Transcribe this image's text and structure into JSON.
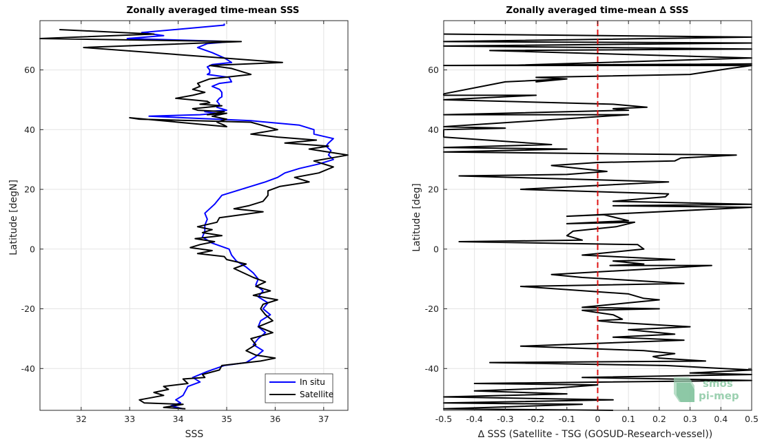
{
  "chart_data": [
    {
      "type": "line",
      "title": "Zonally averaged time-mean SSS",
      "xlabel": "SSS",
      "ylabel": "Latitude [degN]",
      "xlim": [
        31.15,
        37.5
      ],
      "ylim": [
        -54,
        76.5
      ],
      "xticks": [
        32,
        33,
        34,
        35,
        36,
        37
      ],
      "yticks": [
        -40,
        -20,
        0,
        20,
        40,
        60
      ],
      "grid": true,
      "legend": "bottom-right",
      "series": [
        {
          "name": "In situ",
          "color": "#0000ff",
          "x": [
            34.95,
            34.95,
            33.25,
            33.7,
            32.95,
            35.1,
            34.6,
            34.4,
            34.7,
            34.95,
            35.1,
            34.7,
            34.6,
            34.65,
            34.65,
            34.6,
            35.05,
            35.1,
            34.85,
            34.7,
            34.85,
            34.9,
            34.9,
            34.85,
            34.8,
            34.85,
            34.8,
            35.0,
            34.55,
            34.8,
            34.45,
            33.4,
            35.5,
            36.5,
            36.8,
            36.8,
            37.2,
            37.1,
            37.05,
            37.15,
            37.1,
            37.2,
            36.9,
            36.5,
            36.2,
            36.05,
            35.8,
            35.5,
            35.2,
            34.9,
            34.75,
            34.55,
            34.6,
            34.55,
            34.55,
            34.5,
            34.7,
            35.05,
            35.1,
            35.2,
            35.4,
            35.55,
            35.65,
            35.6,
            35.75,
            35.65,
            35.85,
            35.75,
            35.9,
            35.7,
            35.65,
            35.8,
            35.65,
            35.55,
            35.75,
            35.6,
            35.4,
            34.95,
            34.6,
            34.3,
            34.45,
            34.2,
            34.15,
            34.1,
            33.95,
            34.05,
            33.85,
            34.1
          ],
          "y": [
            75.5,
            75.0,
            72.5,
            71.5,
            70.5,
            69.5,
            68.8,
            67.5,
            65.8,
            64.0,
            62.5,
            61.8,
            61.0,
            60.0,
            59.0,
            58.5,
            57.5,
            56.0,
            55.5,
            54.5,
            53.5,
            52.5,
            51.0,
            50.5,
            49.5,
            48.5,
            47.5,
            46.5,
            46.0,
            45.5,
            45.0,
            44.5,
            43.0,
            41.5,
            40.0,
            38.5,
            37.0,
            35.5,
            34.5,
            33.0,
            31.5,
            30.0,
            28.5,
            27.0,
            25.5,
            24.0,
            22.5,
            21.0,
            19.5,
            18.0,
            15.0,
            12.0,
            10.0,
            8.0,
            6.0,
            4.0,
            2.0,
            0.0,
            -2.0,
            -4.0,
            -6.0,
            -8.0,
            -10.0,
            -12.0,
            -14.0,
            -16.0,
            -18.0,
            -20.0,
            -22.0,
            -24.0,
            -26.0,
            -28.0,
            -30.0,
            -32.0,
            -34.0,
            -36.0,
            -38.0,
            -39.0,
            -41.0,
            -43.0,
            -44.5,
            -46.0,
            -47.5,
            -49.0,
            -50.5,
            -51.5,
            -52.5,
            -53.5
          ]
        },
        {
          "name": "Satellite",
          "color": "#000000",
          "x": [
            31.55,
            33.5,
            31.15,
            35.3,
            32.05,
            36.15,
            34.65,
            35.1,
            35.5,
            34.95,
            34.65,
            34.4,
            34.45,
            34.3,
            34.55,
            34.3,
            33.95,
            34.6,
            34.65,
            34.45,
            34.9,
            34.3,
            34.4,
            34.95,
            34.6,
            35.0,
            34.7,
            35.0,
            34.8,
            34.95,
            35.0,
            33.0,
            33.2,
            35.5,
            36.05,
            35.5,
            36.05,
            36.85,
            36.2,
            37.1,
            36.7,
            37.5,
            36.8,
            37.2,
            36.9,
            36.4,
            36.7,
            36.1,
            35.85,
            35.85,
            35.75,
            35.45,
            35.15,
            35.75,
            34.85,
            34.8,
            34.4,
            34.7,
            34.5,
            34.9,
            34.35,
            34.75,
            34.45,
            34.25,
            34.7,
            34.4,
            34.95,
            35.0,
            35.4,
            35.15,
            35.35,
            35.55,
            35.8,
            35.6,
            35.9,
            35.55,
            36.05,
            35.75,
            35.7,
            35.8,
            35.95,
            35.65,
            35.95,
            35.5,
            35.6,
            35.4,
            35.6,
            36.0,
            35.7,
            34.9,
            34.85,
            34.5,
            34.55,
            34.1,
            34.2,
            33.7,
            33.8,
            33.5,
            33.7,
            33.2,
            33.3,
            34.1,
            33.7,
            34.15
          ],
          "y": [
            73.5,
            72.0,
            70.5,
            69.5,
            67.5,
            62.5,
            61.5,
            60.5,
            58.5,
            57.5,
            57.0,
            55.5,
            54.5,
            53.5,
            52.5,
            51.5,
            50.5,
            49.5,
            49.0,
            48.5,
            48.0,
            47.0,
            46.5,
            46.0,
            45.0,
            45.5,
            44.5,
            43.5,
            42.5,
            41.5,
            41.0,
            44.0,
            43.5,
            42.5,
            40.0,
            38.5,
            37.5,
            36.5,
            35.5,
            34.5,
            33.5,
            31.5,
            29.5,
            27.5,
            25.5,
            24.0,
            22.5,
            21.0,
            19.5,
            18.0,
            16.0,
            14.5,
            13.5,
            12.5,
            10.5,
            9.0,
            7.5,
            6.5,
            5.5,
            4.5,
            3.5,
            2.5,
            1.5,
            0.5,
            -0.5,
            -1.5,
            -2.5,
            -3.5,
            -5.0,
            -6.5,
            -8.0,
            -9.5,
            -11.0,
            -12.5,
            -14.0,
            -15.5,
            -17.0,
            -18.5,
            -20.0,
            -22.0,
            -24.0,
            -26.0,
            -28.0,
            -30.0,
            -32.0,
            -34.0,
            -35.5,
            -36.5,
            -37.5,
            -39.0,
            -40.5,
            -42.0,
            -43.0,
            -43.5,
            -45.0,
            -46.0,
            -47.0,
            -48.0,
            -49.0,
            -50.5,
            -51.5,
            -52.0,
            -53.0,
            -53.5
          ]
        }
      ]
    },
    {
      "type": "line",
      "title": "Zonally averaged time-mean ∆ SSS",
      "xlabel": "∆ SSS (Satellite - TSG (GOSUD-Research-vessel))",
      "ylabel": "Latitude [deg]",
      "xlim": [
        -0.5,
        0.5
      ],
      "ylim": [
        -54,
        76.5
      ],
      "xticks": [
        -0.5,
        -0.4,
        -0.3,
        -0.2,
        -0.1,
        0,
        0.1,
        0.2,
        0.3,
        0.4,
        0.5
      ],
      "yticks": [
        -40,
        -20,
        0,
        20,
        40,
        60
      ],
      "grid": true,
      "reference_line": {
        "x": 0,
        "color": "#dd1111",
        "style": "dashed"
      },
      "series": [
        {
          "color": "#000000",
          "x": [
            -0.5,
            0.5,
            -0.5,
            0.5,
            -0.5,
            0.5,
            -0.35,
            0.5,
            -0.3,
            0.5,
            -0.5,
            0.5,
            0.43,
            0.3,
            -0.2,
            -0.1,
            -0.2,
            -0.1,
            -0.3,
            -0.5,
            -0.5,
            -0.2,
            -0.5,
            0.05,
            0.16,
            0.05,
            0.1,
            -0.5,
            0.1,
            -0.5,
            -0.3,
            -0.5,
            -0.5,
            -0.15,
            -0.5,
            -0.1,
            -0.5,
            0.45,
            0.27,
            0.25,
            0.0,
            -0.15,
            0.03,
            -0.1,
            -0.45,
            0.23,
            -0.25,
            0.23,
            0.22,
            0.05,
            0.5,
            0.05,
            0.5,
            -0.1,
            0.02,
            0.1,
            -0.1,
            0.12,
            0.06,
            -0.08,
            -0.1,
            -0.05,
            -0.45,
            0.13,
            0.15,
            -0.05,
            0.25,
            0.05,
            0.15,
            0.04,
            0.37,
            -0.15,
            -0.05,
            0.28,
            -0.25,
            0.1,
            0.15,
            0.2,
            -0.05,
            0.2,
            -0.05,
            0.05,
            0.08,
            0.0,
            0.05,
            0.3,
            0.1,
            0.25,
            0.05,
            0.28,
            -0.25,
            0.15,
            0.25,
            0.18,
            0.2,
            0.35,
            -0.35,
            0.22,
            0.5,
            0.3,
            0.5,
            -0.05,
            0.5,
            -0.4,
            0.0,
            -0.13,
            -0.4,
            -0.1,
            -0.5,
            0.05,
            -0.5,
            -0.05,
            -0.35,
            -0.5,
            0.05
          ],
          "y": [
            72.0,
            71.0,
            69.5,
            69.0,
            68.0,
            67.0,
            66.5,
            64.0,
            61.5,
            62.0,
            61.5,
            61.5,
            60.5,
            58.5,
            57.5,
            57.0,
            56.0,
            57.0,
            56.0,
            52.0,
            51.5,
            51.5,
            50.0,
            48.5,
            47.5,
            47.0,
            46.5,
            45.0,
            45.0,
            41.0,
            40.5,
            40.0,
            37.5,
            35.0,
            34.0,
            33.5,
            32.5,
            31.5,
            30.5,
            29.5,
            29.0,
            28.0,
            26.0,
            25.0,
            24.5,
            22.5,
            20.0,
            18.5,
            17.5,
            16.0,
            15.0,
            14.5,
            14.0,
            11.0,
            11.5,
            9.5,
            8.5,
            9.0,
            7.5,
            6.0,
            4.5,
            3.0,
            2.5,
            1.5,
            0.0,
            -2.0,
            -3.5,
            -4.0,
            -5.0,
            -5.5,
            -5.5,
            -8.5,
            -9.5,
            -11.5,
            -12.5,
            -15.0,
            -16.5,
            -17.0,
            -19.5,
            -20.0,
            -20.5,
            -22.0,
            -23.5,
            -24.0,
            -24.5,
            -26.0,
            -27.0,
            -28.5,
            -29.5,
            -30.5,
            -32.5,
            -34.0,
            -35.0,
            -36.0,
            -36.5,
            -37.5,
            -38.0,
            -39.0,
            -40.5,
            -41.5,
            -42.0,
            -43.0,
            -44.0,
            -45.0,
            -45.5,
            -46.5,
            -47.5,
            -48.5,
            -49.5,
            -50.5,
            -51.5,
            -52.0,
            -53.0,
            -53.5,
            -54.0
          ]
        }
      ]
    }
  ],
  "logo": {
    "line1": "smos",
    "line2": "pi-mep"
  }
}
